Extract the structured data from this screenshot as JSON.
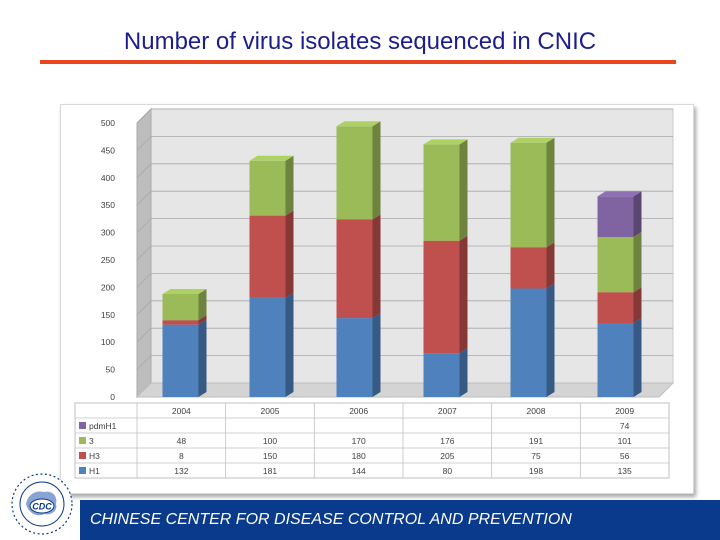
{
  "slide": {
    "title": "Number of virus isolates sequenced in CNIC",
    "footer": "CHINESE CENTER FOR DISEASE CONTROL AND PREVENTION",
    "logo_text": "CDC"
  },
  "colors": {
    "title": "#1d1d8c",
    "rule": "#e8461e",
    "footer_bg": "#0a3a8c",
    "H1": "#4f81bd",
    "H3": "#c0504d",
    "B": "#9bbb59",
    "pdmH1": "#8064a2"
  },
  "chart_data": {
    "type": "bar",
    "stacked": true,
    "three_d": true,
    "categories": [
      "2004",
      "2005",
      "2006",
      "2007",
      "2008",
      "2009"
    ],
    "series": [
      {
        "name": "H1",
        "color": "#4f81bd",
        "values": [
          132,
          181,
          144,
          80,
          198,
          135
        ],
        "labels": [
          "132",
          "181",
          "144",
          "80",
          "198",
          "135"
        ]
      },
      {
        "name": "H3",
        "color": "#c0504d",
        "values": [
          8,
          150,
          180,
          205,
          75,
          56
        ],
        "labels": [
          "8",
          "150",
          "180",
          "205",
          "75",
          "56"
        ]
      },
      {
        "name": "3",
        "color": "#9bbb59",
        "values": [
          48,
          100,
          170,
          176,
          191,
          101
        ],
        "labels": [
          "48",
          "100",
          "170",
          "176",
          "191",
          "101"
        ]
      },
      {
        "name": "pdmH1",
        "color": "#8064a2",
        "values": [
          0,
          0,
          0,
          0,
          0,
          74
        ],
        "labels": [
          "",
          "",
          "",
          "",
          "",
          "74"
        ]
      }
    ],
    "y_ticks": [
      0,
      50,
      100,
      150,
      200,
      250,
      300,
      350,
      400,
      450,
      500
    ],
    "ylim": [
      0,
      500
    ],
    "grid": true,
    "legend": "data-table"
  }
}
